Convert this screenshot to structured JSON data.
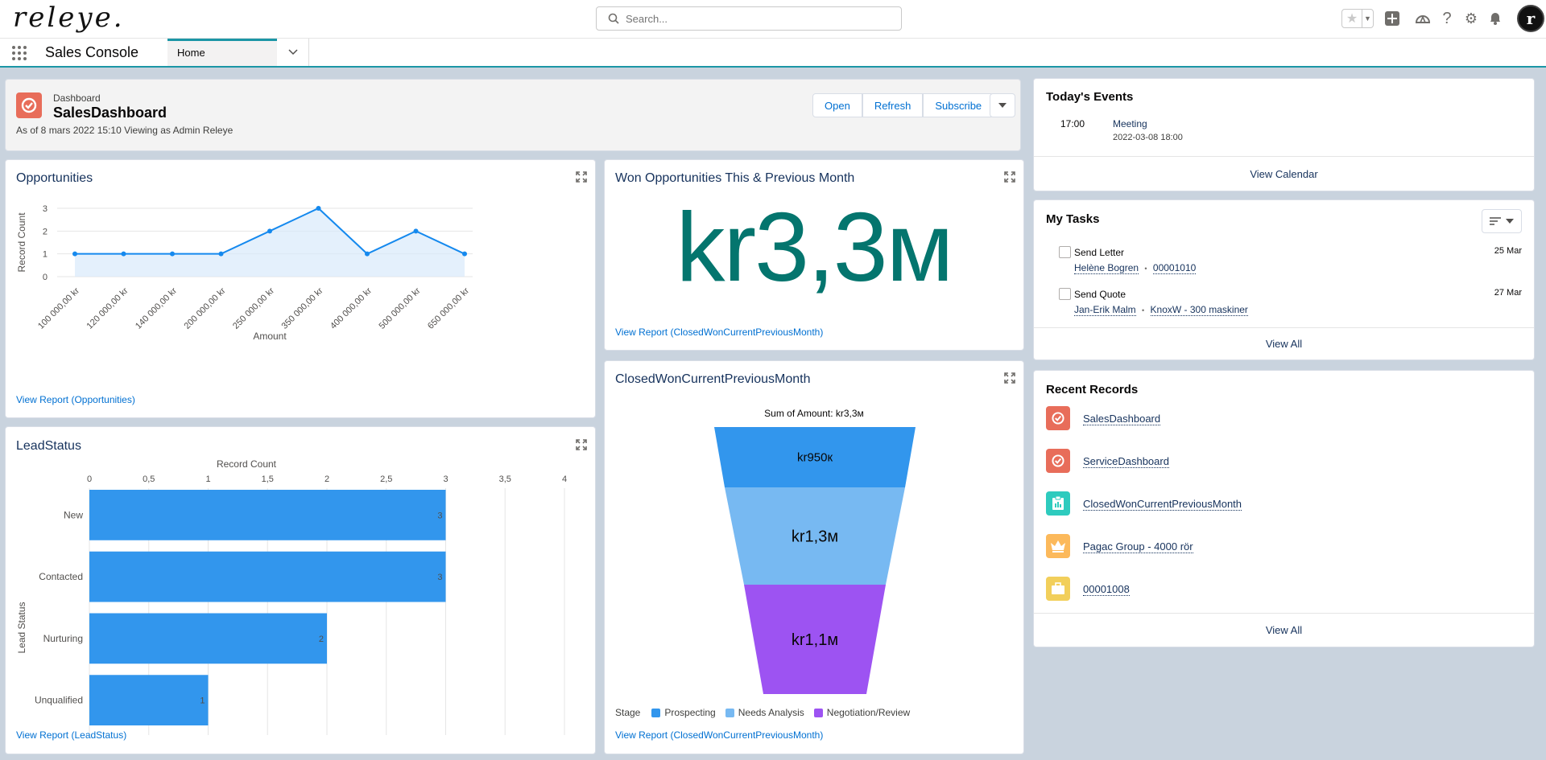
{
  "header": {
    "logo_text": "releye.",
    "search_placeholder": "Search...",
    "avatar_initial": "r",
    "icons": [
      "favorite-star-icon",
      "add-icon",
      "trailhead-icon",
      "help-icon",
      "setup-gear-icon",
      "notifications-bell-icon"
    ]
  },
  "nav": {
    "app_name": "Sales Console",
    "tab_home": "Home"
  },
  "dashboard": {
    "type_label": "Dashboard",
    "name": "SalesDashboard",
    "subtitle": "As of 8 mars 2022 15:10 Viewing as Admin Releye",
    "buttons": {
      "open": "Open",
      "refresh": "Refresh",
      "subscribe": "Subscribe"
    },
    "accent": "#e86d5a"
  },
  "opportunities": {
    "title": "Opportunities",
    "link": "View Report (Opportunities)",
    "chart_data": {
      "type": "line",
      "x": [
        "100 000,00 kr",
        "120 000,00 kr",
        "140 000,00 kr",
        "200 000,00 kr",
        "250 000,00 kr",
        "350 000,00 kr",
        "400 000,00 kr",
        "500 000,00 kr",
        "650 000,00 kr"
      ],
      "values": [
        1,
        1,
        1,
        1,
        2,
        3,
        1,
        2,
        1
      ],
      "xlabel": "Amount",
      "ylabel": "Record Count",
      "yticks": [
        "0",
        "1",
        "2",
        "3"
      ],
      "ylim": [
        0,
        3
      ],
      "color": "#1589ee"
    }
  },
  "won": {
    "title": "Won Opportunities This & Previous Month",
    "metric": "kr3,3м",
    "link": "View Report (ClosedWonCurrentPreviousMonth)",
    "color": "#04756e"
  },
  "funnel": {
    "title": "ClosedWonCurrentPreviousMonth",
    "link": "View Report (ClosedWonCurrentPreviousMonth)",
    "chart_data": {
      "type": "funnel",
      "title": "Sum of Amount: kr3,3м",
      "stages": [
        {
          "name": "Prospecting",
          "label": "kr950к",
          "color": "#3296ed"
        },
        {
          "name": "Needs Analysis",
          "label": "kr1,3м",
          "color": "#77b9f2"
        },
        {
          "name": "Negotiation/Review",
          "label": "kr1,1м",
          "color": "#9d53f2"
        }
      ],
      "legend_title": "Stage",
      "legend_position": "bottom"
    }
  },
  "leadstatus": {
    "title": "LeadStatus",
    "link": "View Report (LeadStatus)",
    "chart_data": {
      "type": "bar",
      "orientation": "horizontal",
      "categories": [
        "New",
        "Contacted",
        "Nurturing",
        "Unqualified"
      ],
      "values": [
        3,
        3,
        2,
        1
      ],
      "xlabel": "Record Count",
      "ylabel": "Lead Status",
      "xticks": [
        "0",
        "0,5",
        "1",
        "1,5",
        "2",
        "2,5",
        "3",
        "3,5",
        "4"
      ],
      "xlim": [
        0,
        4
      ],
      "color": "#3296ed"
    }
  },
  "events": {
    "title": "Today's Events",
    "items": [
      {
        "time": "17:00",
        "name": "Meeting",
        "end": "2022-03-08 18:00"
      }
    ],
    "footer": "View Calendar"
  },
  "tasks": {
    "title": "My Tasks",
    "items": [
      {
        "name": "Send Letter",
        "date": "25 Mar",
        "who": "Helène Bogren",
        "what": "00001010"
      },
      {
        "name": "Send Quote",
        "date": "27 Mar",
        "who": "Jan-Erik Malm",
        "what": "KnoxW - 300 maskiner"
      }
    ],
    "sep": "•",
    "footer": "View All"
  },
  "recent": {
    "title": "Recent Records",
    "items": [
      {
        "label": "SalesDashboard",
        "icon": "dashboard-icon",
        "color": "#e86d5a"
      },
      {
        "label": "ServiceDashboard",
        "icon": "dashboard-icon",
        "color": "#e86d5a"
      },
      {
        "label": "ClosedWonCurrentPreviousMonth",
        "icon": "report-icon",
        "color": "#2ecbbe"
      },
      {
        "label": "Pagac Group - 4000 rör",
        "icon": "opportunity-crown-icon",
        "color": "#fcb95b"
      },
      {
        "label": "00001008",
        "icon": "case-briefcase-icon",
        "color": "#f2cf5b"
      }
    ],
    "footer": "View All"
  }
}
